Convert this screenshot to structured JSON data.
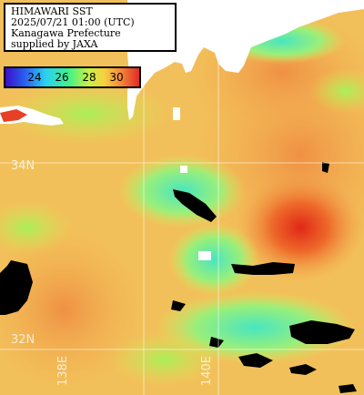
{
  "info": {
    "title": "HIMAWARI SST",
    "datetime": "2025/07/21 01:00 (UTC)",
    "region": "Kanagawa Prefecture",
    "credit": "supplied by JAXA"
  },
  "legend": {
    "ticks": [
      "24",
      "26",
      "28",
      "30"
    ],
    "colors": [
      "#3a10c8",
      "#2a5cf0",
      "#2bd0f2",
      "#3ef28a",
      "#c8f045",
      "#f7d040",
      "#f48a3a",
      "#e22a24"
    ]
  },
  "grid": {
    "lat_labels": [
      "34N",
      "32N"
    ],
    "lon_labels": [
      "138E",
      "140E"
    ]
  },
  "colors": {
    "land": "#ffffff",
    "cloud_mask": "#000000",
    "sea_base": "#f2c05a",
    "warm_core": "#e4381e"
  }
}
